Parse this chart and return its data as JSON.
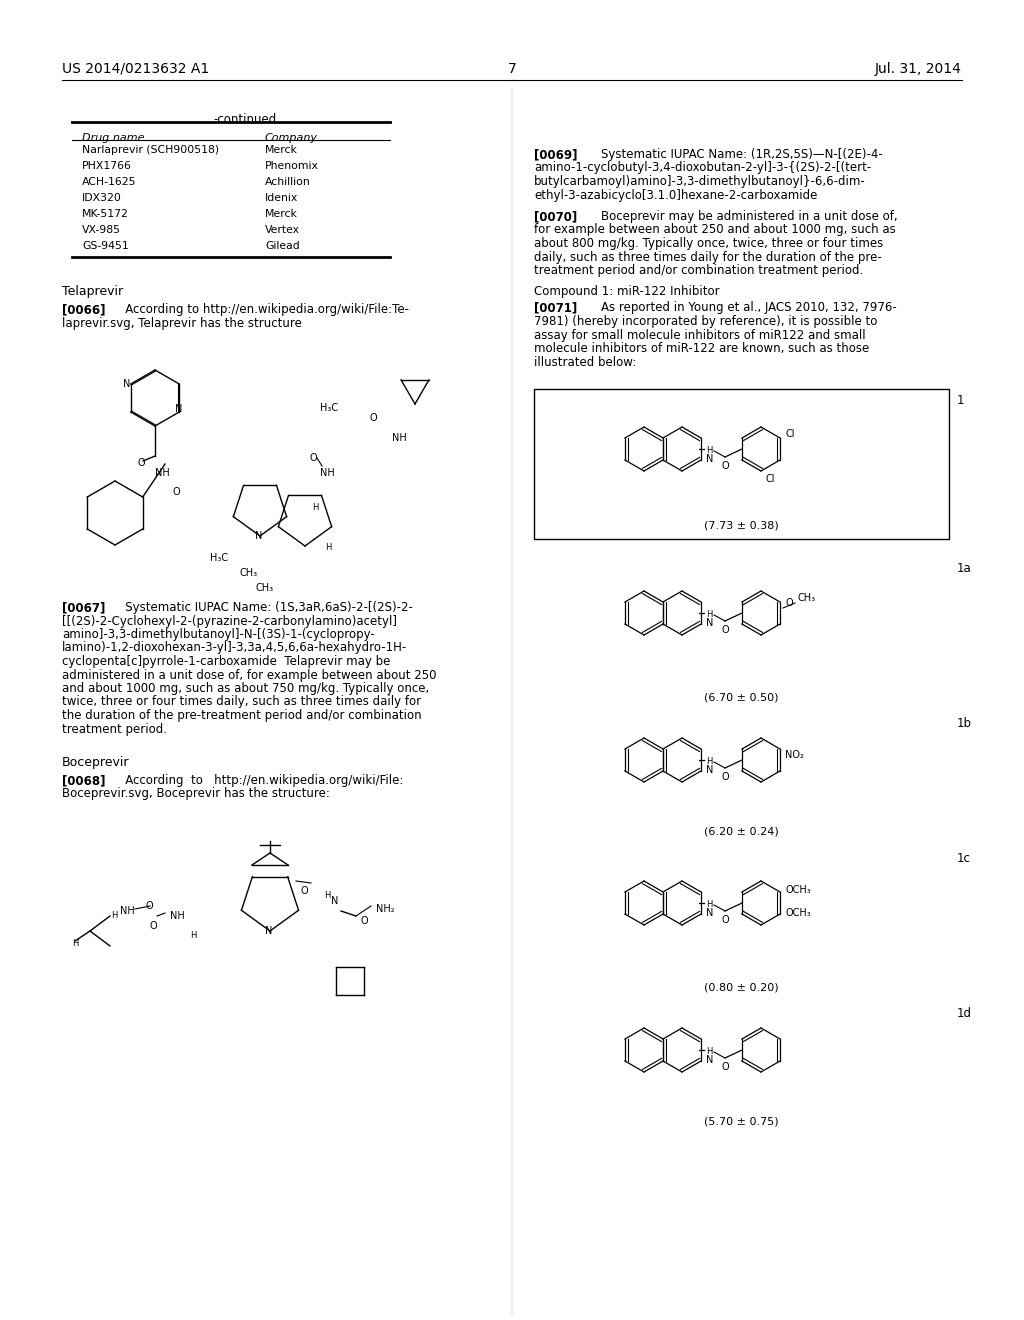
{
  "bg_color": "#ffffff",
  "header_left": "US 2014/0213632 A1",
  "header_right": "Jul. 31, 2014",
  "page_num": "7",
  "continued": "-continued",
  "table_drugs": [
    [
      "Narlaprevir (SCH900518)",
      "Merck"
    ],
    [
      "PHX1766",
      "Phenomix"
    ],
    [
      "ACH-1625",
      "Achillion"
    ],
    [
      "IDX320",
      "Idenix"
    ],
    [
      "MK-5172",
      "Merck"
    ],
    [
      "VX-985",
      "Vertex"
    ],
    [
      "GS-9451",
      "Gilead"
    ]
  ],
  "left_para_0066": "[0066]    According to http://en.wikipedia.org/wiki/File:Te-\nlaprevir.svg, Telaprevir has the structure",
  "left_para_0067_lines": [
    "[0067]    Systematic IUPAC Name: (1S,3aR,6aS)-2-[(2S)-2-",
    "[[(2S)-2-Cyclohexyl-2-(pyrazine-2-carbonylamino)acetyl]",
    "amino]-3,3-dimethylbutanoyl]-N-[(3S)-1-(cyclopropy-",
    "lamino)-1,2-dioxohexan-3-yl]-3,3a,4,5,6,6a-hexahydro-1H-",
    "cyclopenta[c]pyrrole-1-carboxamide  Telaprevir may be",
    "administered in a unit dose of, for example between about 250",
    "and about 1000 mg, such as about 750 mg/kg. Typically once,",
    "twice, three or four times daily, such as three times daily for",
    "the duration of the pre-treatment period and/or combination",
    "treatment period."
  ],
  "left_para_0068_lines": [
    "[0068]    According  to   http://en.wikipedia.org/wiki/File:",
    "Boceprevir.svg, Boceprevir has the structure:"
  ],
  "right_para_0069_lines": [
    "[0069]    Systematic IUPAC Name: (1R,2S,5S)—N-[(2E)-4-",
    "amino-1-cyclobutyl-3,4-dioxobutan-2-yl]-3-{(2S)-2-[(tert-",
    "butylcarbamoyl)amino]-3,3-dimethylbutanoyl}-6,6-dim-",
    "ethyl-3-azabicyclo[3.1.0]hexane-2-carboxamide"
  ],
  "right_para_0070_lines": [
    "[0070]    Boceprevir may be administered in a unit dose of,",
    "for example between about 250 and about 1000 mg, such as",
    "about 800 mg/kg. Typically once, twice, three or four times",
    "daily, such as three times daily for the duration of the pre-",
    "treatment period and/or combination treatment period."
  ],
  "right_compound1": "Compound 1: miR-122 Inhibitor",
  "right_para_0071_lines": [
    "[0071]    As reported in Young et al., JACS 2010, 132, 7976-",
    "7981) (hereby incorporated by reference), it is possible to",
    "assay for small molecule inhibitors of miR122 and small",
    "molecule inhibitors of miR-122 are known, such as those",
    "illustrated below:"
  ],
  "chem_boxes": [
    {
      "label": "1",
      "caption": "(7.73 ± 0.38)",
      "has_border": true
    },
    {
      "label": "1a",
      "caption": "(6.70 ± 0.50)",
      "has_border": false
    },
    {
      "label": "1b",
      "caption": "(6.20 ± 0.24)",
      "has_border": false
    },
    {
      "label": "1c",
      "caption": "(0.80 ± 0.20)",
      "has_border": false
    },
    {
      "label": "1d",
      "caption": "(5.70 ± 0.75)",
      "has_border": false
    }
  ]
}
